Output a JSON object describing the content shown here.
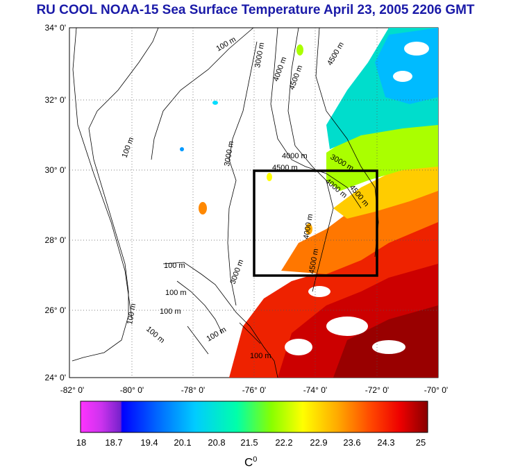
{
  "title": "RU COOL  NOAA-15 Sea Surface Temperature April 23, 2005 2206 GMT",
  "map": {
    "lat_ticks": [
      "34° 0'",
      "32° 0'",
      "30° 0'",
      "28° 0'",
      "26° 0'",
      "24° 0'"
    ],
    "lon_ticks": [
      "-82° 0'",
      "-80° 0'",
      "-78° 0'",
      "-76° 0'",
      "-74° 0'",
      "-72° 0'",
      "-70° 0'"
    ],
    "lon_range": [
      -82,
      -70
    ],
    "lat_range": [
      24,
      34
    ],
    "study_box": {
      "lon": [
        -76,
        -72
      ],
      "lat": [
        27,
        30
      ]
    },
    "contour_labels": [
      "100 m",
      "100 m",
      "3000 m",
      "4000 m",
      "4500 m",
      "4500 m",
      "3000 m",
      "4000 m",
      "4500 m",
      "3000 m",
      "4000 m",
      "4500 m",
      "4000 m",
      "4500 m",
      "3000 m",
      "100 m",
      "100 m",
      "100 m",
      "100 m",
      "100 m",
      "100 m",
      "100 m"
    ]
  },
  "colorbar": {
    "ticks": [
      "18",
      "18.7",
      "19.4",
      "20.1",
      "20.8",
      "21.5",
      "22.2",
      "22.9",
      "23.6",
      "24.3",
      "25"
    ],
    "unit_base": "C",
    "unit_sup": "0",
    "colors": [
      "#ff33ff",
      "#9922dd",
      "#0000ff",
      "#0088ff",
      "#00ddff",
      "#00ffaa",
      "#66ff00",
      "#ffff00",
      "#ffaa00",
      "#ff5500",
      "#ee0000",
      "#990000"
    ]
  }
}
